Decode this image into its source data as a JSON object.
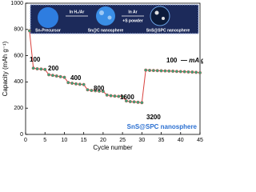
{
  "chart_data": {
    "type": "line",
    "x_label": "Cycle number",
    "y_label": "Capacity (mAh g⁻¹)",
    "x": [
      1,
      2,
      3,
      4,
      5,
      6,
      7,
      8,
      9,
      10,
      11,
      12,
      13,
      14,
      15,
      16,
      17,
      18,
      19,
      20,
      21,
      22,
      23,
      24,
      25,
      26,
      27,
      28,
      29,
      30,
      31,
      32,
      33,
      34,
      35,
      36,
      37,
      38,
      39,
      40,
      41,
      42,
      43,
      44,
      45
    ],
    "series": [
      {
        "name": "SnS@SPC nanosphere",
        "color": "#d9413d",
        "marker_color": "#3aa37a",
        "values": [
          790,
          505,
          500,
          498,
          495,
          455,
          450,
          445,
          440,
          435,
          395,
          390,
          385,
          382,
          380,
          340,
          335,
          333,
          330,
          328,
          300,
          295,
          292,
          290,
          288,
          255,
          250,
          248,
          245,
          242,
          490,
          488,
          487,
          486,
          485,
          484,
          483,
          482,
          480,
          479,
          478,
          476,
          475,
          473,
          470
        ]
      }
    ],
    "xlim": [
      0,
      45
    ],
    "xticks": [
      0,
      5,
      10,
      15,
      20,
      25,
      30,
      35,
      40,
      45
    ],
    "ylim": [
      0,
      1000
    ],
    "yticks": [
      0,
      200,
      400,
      600,
      800,
      1000
    ],
    "annotations": [
      "100",
      "200",
      "400",
      "800",
      "1600",
      "3200",
      "100",
      "— mA g⁻¹"
    ],
    "inset": {
      "labels": [
        "Sn-Precursor",
        "In H₂/Ar",
        "Sn@C nanosphere",
        "In Ar",
        "+S powder",
        "SnS@SPC nanosphere"
      ]
    }
  }
}
